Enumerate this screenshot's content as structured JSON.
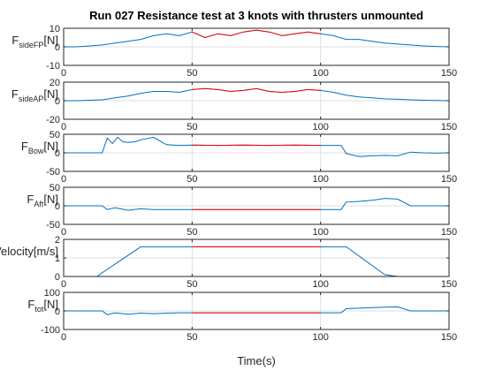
{
  "figure": {
    "title": "Run 027 Resistance test at 3 knots with thrusters unmounted",
    "xlabel": "Time(s)"
  },
  "chart_data": {
    "type": "line",
    "title": "Run 027 Resistance test at 3 knots with thrusters unmounted",
    "xlabel": "Time(s)",
    "xlim": [
      0,
      150
    ],
    "xticks": [
      0,
      50,
      100,
      150
    ],
    "grid": true,
    "colors": {
      "base": "#0072BD",
      "highlight": "#FF0000"
    },
    "highlight_window": [
      50,
      100
    ],
    "panels": [
      {
        "ylabel_main": "F",
        "ylabel_sub": "sideFP",
        "ylabel_unit": "[N]",
        "ylim": [
          -10,
          10
        ],
        "yticks": [
          -10,
          0,
          10
        ],
        "series": [
          {
            "x": [
              0,
              5,
              10,
              15,
              20,
              25,
              30,
              35,
              40,
              45,
              50,
              55,
              60,
              65,
              70,
              75,
              80,
              85,
              90,
              95,
              100,
              105,
              110,
              115,
              120,
              125,
              130,
              135,
              140,
              145,
              150
            ],
            "y": [
              0,
              0,
              0.5,
              1,
              2,
              3,
              4,
              6,
              7,
              6,
              8,
              5,
              7,
              6,
              8,
              9,
              8,
              6,
              7,
              8,
              7,
              6,
              4,
              4,
              3,
              2,
              1.5,
              1,
              0.5,
              0.2,
              0
            ]
          }
        ]
      },
      {
        "ylabel_main": "F",
        "ylabel_sub": "sideAP",
        "ylabel_unit": "[N]",
        "ylim": [
          -20,
          20
        ],
        "yticks": [
          -20,
          0,
          20
        ],
        "series": [
          {
            "x": [
              0,
              5,
              10,
              15,
              20,
              25,
              30,
              35,
              40,
              45,
              50,
              55,
              60,
              65,
              70,
              75,
              80,
              85,
              90,
              95,
              100,
              105,
              110,
              115,
              120,
              125,
              130,
              135,
              140,
              145,
              150
            ],
            "y": [
              0,
              0,
              0.5,
              1,
              3,
              5,
              8,
              10,
              10,
              9,
              12,
              13,
              12,
              10,
              11,
              13,
              10,
              9,
              10,
              12,
              11,
              9,
              6,
              4,
              3,
              2,
              1.5,
              1,
              0.5,
              0.2,
              0
            ]
          }
        ]
      },
      {
        "ylabel_main": "F",
        "ylabel_sub": "Bow",
        "ylabel_unit": "[N]",
        "ylim": [
          -50,
          50
        ],
        "yticks": [
          -50,
          0,
          50
        ],
        "series": [
          {
            "x": [
              0,
              10,
              15,
              17,
              19,
              21,
              23,
              25,
              28,
              30,
              35,
              40,
              45,
              50,
              60,
              70,
              80,
              90,
              100,
              105,
              108,
              110,
              112,
              115,
              120,
              125,
              130,
              135,
              140,
              145,
              150
            ],
            "y": [
              0,
              0,
              0,
              40,
              25,
              42,
              30,
              28,
              30,
              35,
              42,
              22,
              20,
              21,
              20,
              21,
              20,
              21,
              20,
              20,
              20,
              -2,
              -5,
              -10,
              -8,
              -7,
              -8,
              2,
              0,
              -1,
              0
            ]
          }
        ]
      },
      {
        "ylabel_main": "F",
        "ylabel_sub": "Aft",
        "ylabel_unit": "[N]",
        "ylim": [
          -50,
          50
        ],
        "yticks": [
          -50,
          0,
          50
        ],
        "series": [
          {
            "x": [
              0,
              10,
              15,
              17,
              20,
              25,
              30,
              35,
              40,
              45,
              50,
              60,
              70,
              80,
              90,
              100,
              105,
              108,
              110,
              115,
              120,
              125,
              130,
              135,
              140,
              145,
              150
            ],
            "y": [
              0,
              0,
              0,
              -10,
              -5,
              -12,
              -8,
              -10,
              -10,
              -10,
              -10,
              -10,
              -10,
              -10,
              -10,
              -10,
              -10,
              -10,
              10,
              12,
              15,
              20,
              18,
              0,
              0,
              0,
              0
            ]
          }
        ]
      },
      {
        "ylabel_main": "Vessel Velocity",
        "ylabel_sub": "",
        "ylabel_unit": "[m/s]",
        "ylim": [
          0,
          2
        ],
        "yticks": [
          0,
          1,
          2
        ],
        "series": [
          {
            "x": [
              0,
              13,
              15,
              30,
              50,
              100,
              110,
              125,
              130,
              150
            ],
            "y": [
              0,
              0,
              0.2,
              1.6,
              1.6,
              1.6,
              1.6,
              0.1,
              0,
              0
            ]
          }
        ]
      },
      {
        "ylabel_main": "F",
        "ylabel_sub": "tot",
        "ylabel_unit": "[N]",
        "ylim": [
          -100,
          100
        ],
        "yticks": [
          -100,
          0,
          100
        ],
        "series": [
          {
            "x": [
              0,
              10,
              15,
              17,
              20,
              25,
              30,
              35,
              40,
              45,
              50,
              60,
              70,
              80,
              90,
              100,
              105,
              108,
              110,
              115,
              120,
              125,
              130,
              135,
              140,
              145,
              150
            ],
            "y": [
              0,
              0,
              0,
              -20,
              -10,
              -18,
              -12,
              -15,
              -12,
              -10,
              -10,
              -10,
              -10,
              -10,
              -10,
              -10,
              -10,
              -10,
              12,
              15,
              18,
              20,
              22,
              0,
              0,
              0,
              0
            ]
          }
        ]
      }
    ]
  }
}
